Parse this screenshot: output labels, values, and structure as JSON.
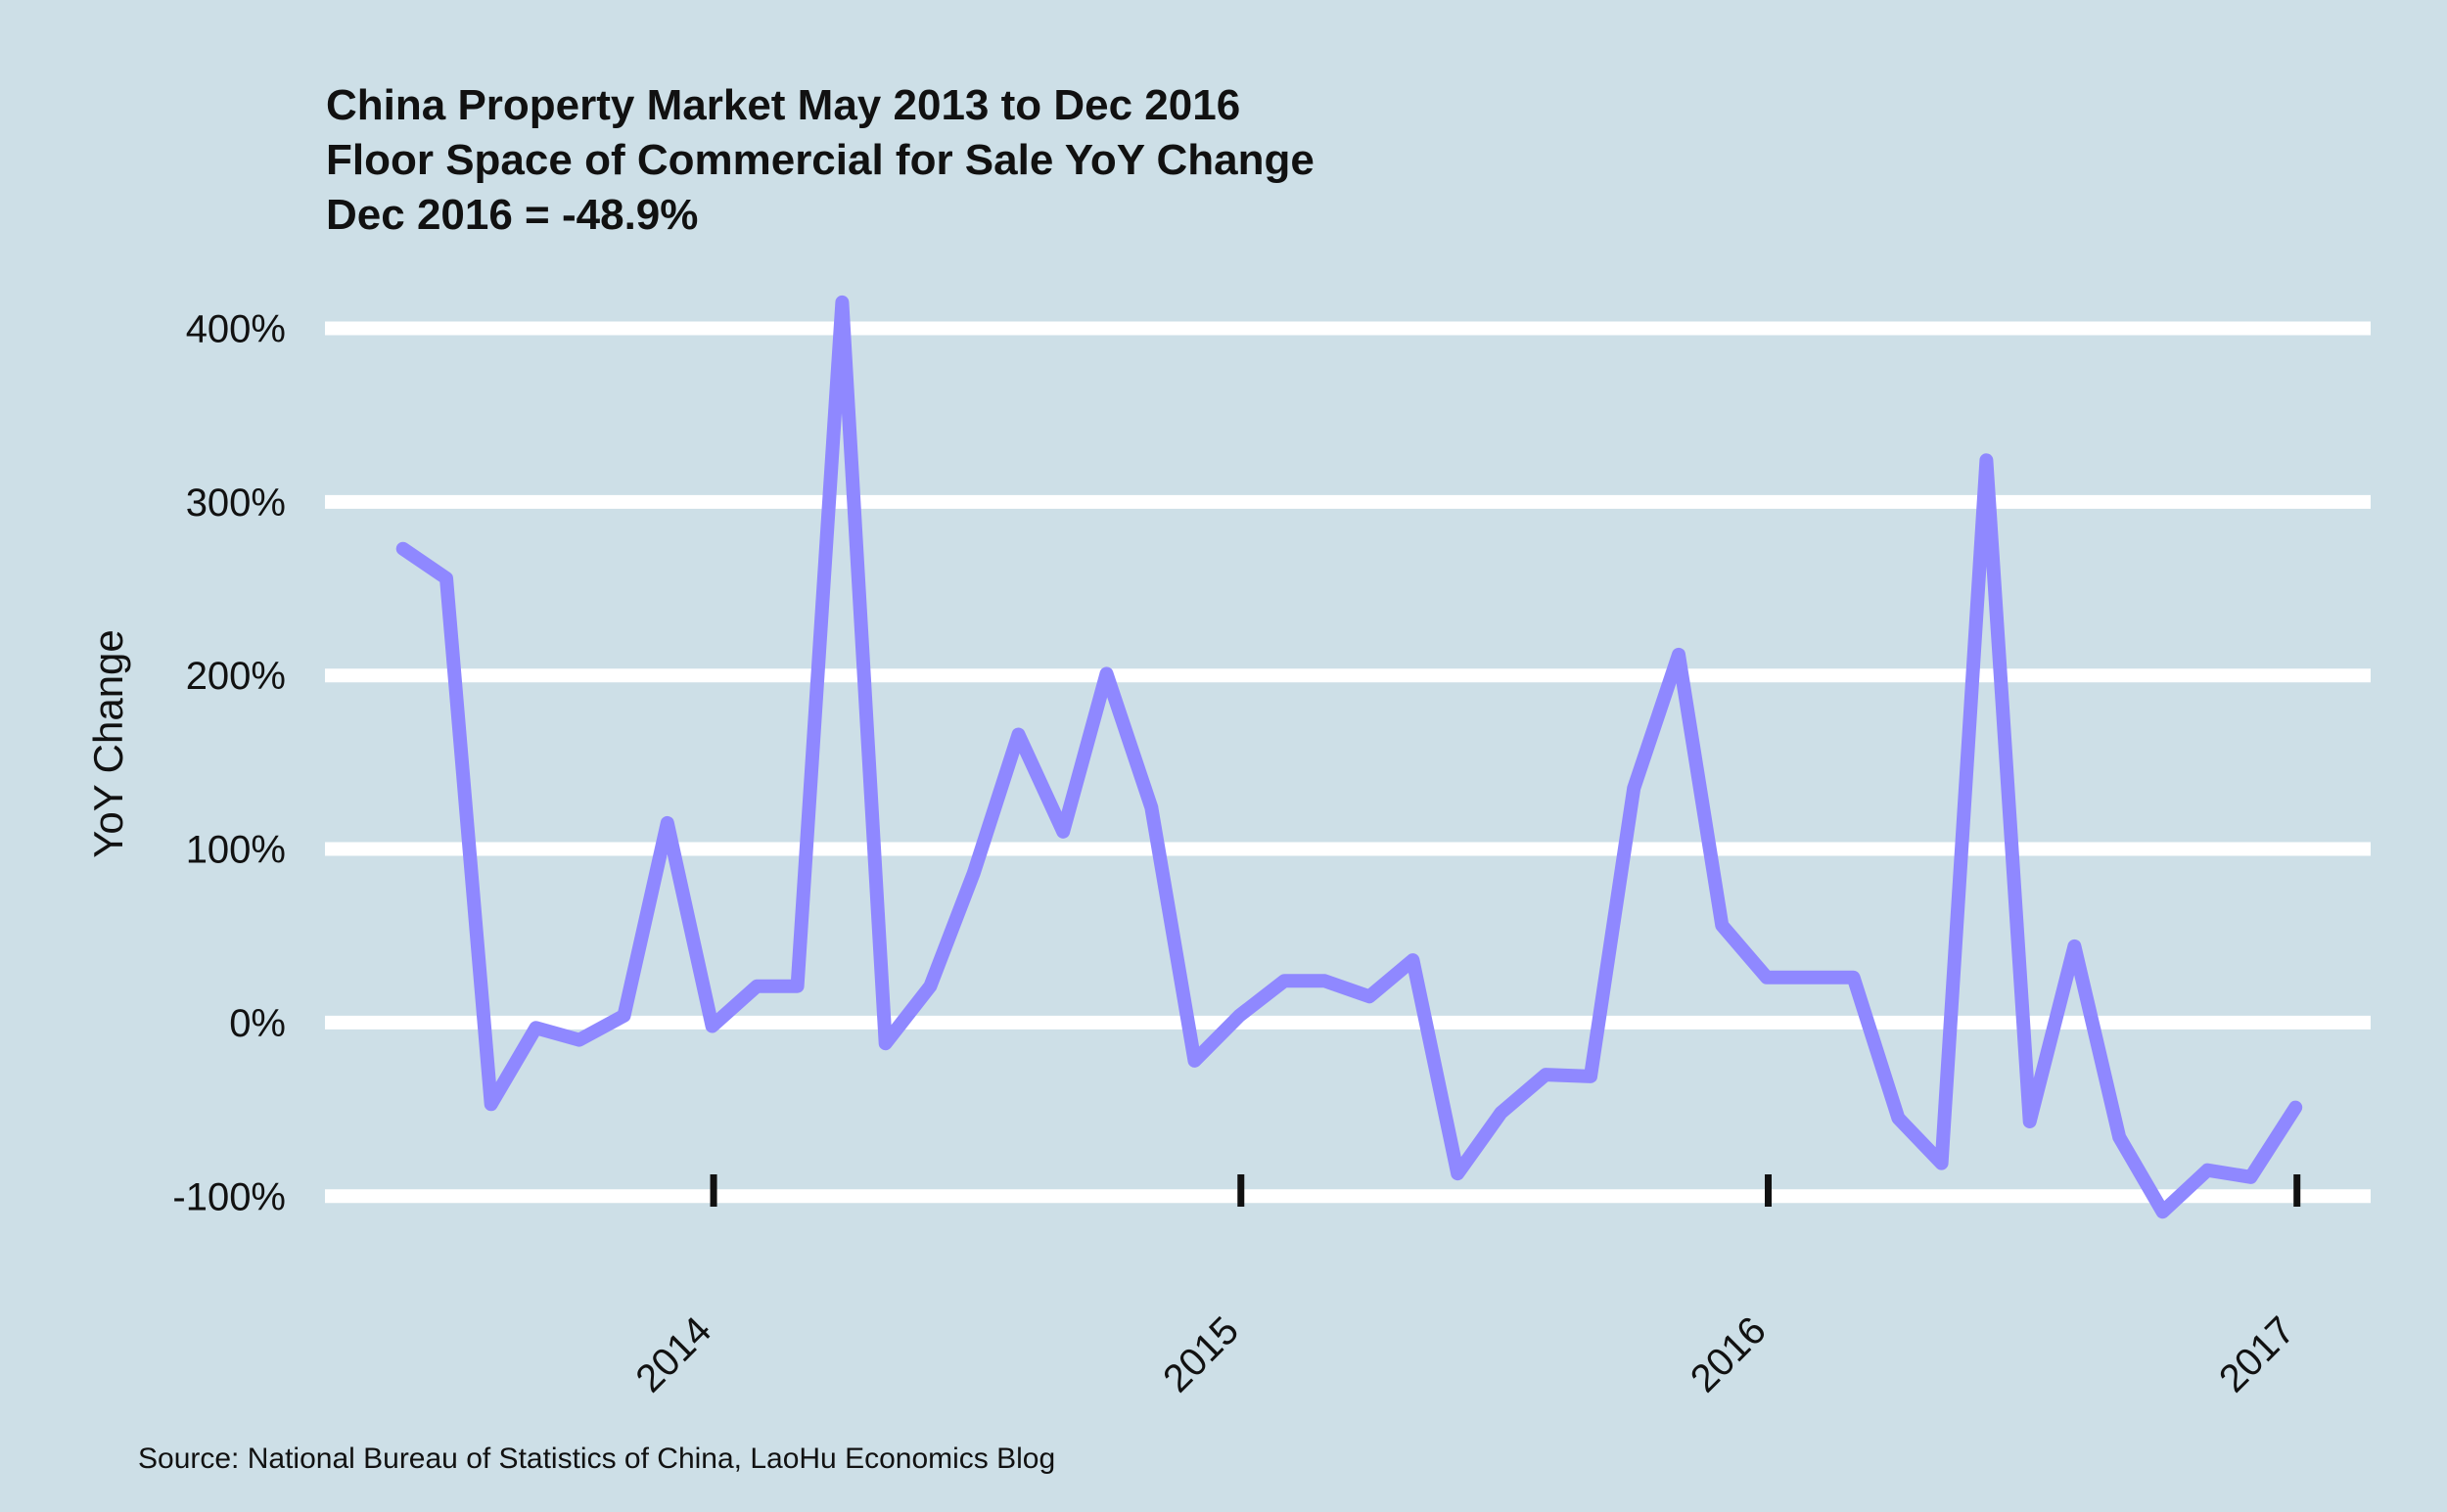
{
  "chart_data": {
    "type": "line",
    "title": "China Property Market May 2013 to Dec 2016",
    "subtitle": "Floor Space of Commercial for Sale YoY Change",
    "subtitle2": "Dec 2016 = -48.9%",
    "xlabel": "",
    "ylabel": "YoY Change",
    "source": "Source: National Bureau of Statistics of China, LaoHu Economics Blog",
    "ylim": [
      -110,
      420
    ],
    "yticks": [
      -100,
      0,
      100,
      200,
      300,
      400
    ],
    "ytick_labels": [
      "-100%",
      "0%",
      "100%",
      "200%",
      "300%",
      "400%"
    ],
    "xticks": [
      "2014-01-01",
      "2015-01-01",
      "2016-01-01",
      "2017-01-01"
    ],
    "xtick_labels": [
      "2014",
      "2015",
      "2016",
      "2017"
    ],
    "xlim": [
      "2013-04-07",
      "2017-02-21"
    ],
    "grid": true,
    "line_color": "#8f88ff",
    "series": [
      {
        "x": [
          "2013-05-31",
          "2013-06-30",
          "2013-07-31",
          "2013-08-31",
          "2013-09-30",
          "2013-10-31",
          "2013-11-30",
          "2013-12-31",
          "2014-01-31",
          "2014-02-28",
          "2014-03-31",
          "2014-04-30",
          "2014-05-31",
          "2014-06-30",
          "2014-07-31",
          "2014-08-31",
          "2014-09-30",
          "2014-10-31",
          "2014-11-30",
          "2014-12-31",
          "2015-01-31",
          "2015-02-28",
          "2015-03-31",
          "2015-04-30",
          "2015-05-31",
          "2015-06-30",
          "2015-07-31",
          "2015-08-31",
          "2015-09-30",
          "2015-10-31",
          "2015-11-30",
          "2015-12-31",
          "2016-01-31",
          "2016-02-29",
          "2016-03-31",
          "2016-04-30",
          "2016-05-31",
          "2016-06-30",
          "2016-07-31",
          "2016-08-31",
          "2016-09-30",
          "2016-10-31",
          "2016-11-30",
          "2016-12-31"
        ],
        "values": [
          273,
          256,
          -47,
          -3,
          -10,
          4,
          115,
          -2,
          21,
          21,
          415,
          -12,
          21,
          86,
          166,
          110,
          201,
          124,
          -22,
          4,
          24,
          24,
          15,
          36,
          -87,
          -52,
          -30,
          -31,
          135,
          212,
          56,
          26,
          26,
          26,
          -55,
          -81,
          324,
          -57,
          44,
          -66,
          -109,
          -85,
          -89,
          -48.9
        ]
      }
    ]
  }
}
